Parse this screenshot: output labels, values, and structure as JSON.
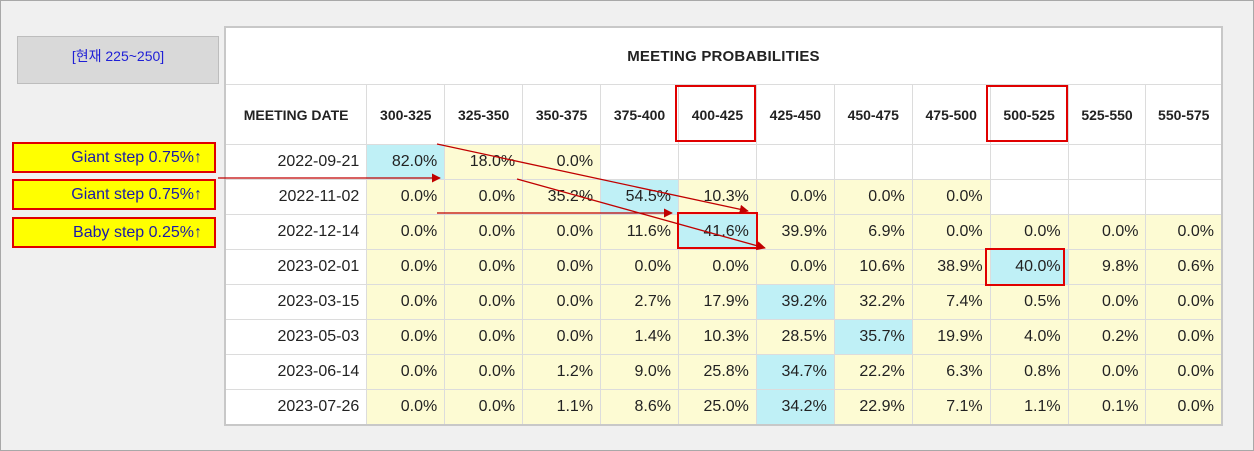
{
  "current_label": "[현재 225~250]",
  "step_labels": [
    "Giant step 0.75%↑",
    "Giant step 0.75%↑",
    "Baby step 0.25%↑"
  ],
  "table": {
    "title": "MEETING PROBABILITIES",
    "date_header": "MEETING DATE",
    "ranges": [
      "300-325",
      "325-350",
      "350-375",
      "375-400",
      "400-425",
      "425-450",
      "450-475",
      "475-500",
      "500-525",
      "525-550",
      "550-575"
    ],
    "rows": [
      {
        "date": "2022-09-21",
        "values": [
          "82.0%",
          "18.0%",
          "0.0%",
          "",
          "",
          "",
          "",
          "",
          "",
          "",
          ""
        ]
      },
      {
        "date": "2022-11-02",
        "values": [
          "0.0%",
          "0.0%",
          "35.2%",
          "54.5%",
          "10.3%",
          "0.0%",
          "0.0%",
          "0.0%",
          "",
          "",
          ""
        ]
      },
      {
        "date": "2022-12-14",
        "values": [
          "0.0%",
          "0.0%",
          "0.0%",
          "11.6%",
          "41.6%",
          "39.9%",
          "6.9%",
          "0.0%",
          "0.0%",
          "0.0%",
          "0.0%"
        ]
      },
      {
        "date": "2023-02-01",
        "values": [
          "0.0%",
          "0.0%",
          "0.0%",
          "0.0%",
          "0.0%",
          "0.0%",
          "10.6%",
          "38.9%",
          "40.0%",
          "9.8%",
          "0.6%"
        ]
      },
      {
        "date": "2023-03-15",
        "values": [
          "0.0%",
          "0.0%",
          "0.0%",
          "2.7%",
          "17.9%",
          "39.2%",
          "32.2%",
          "7.4%",
          "0.5%",
          "0.0%",
          "0.0%"
        ]
      },
      {
        "date": "2023-05-03",
        "values": [
          "0.0%",
          "0.0%",
          "0.0%",
          "1.4%",
          "10.3%",
          "28.5%",
          "35.7%",
          "19.9%",
          "4.0%",
          "0.2%",
          "0.0%"
        ]
      },
      {
        "date": "2023-06-14",
        "values": [
          "0.0%",
          "0.0%",
          "1.2%",
          "9.0%",
          "25.8%",
          "34.7%",
          "22.2%",
          "6.3%",
          "0.8%",
          "0.0%",
          "0.0%"
        ]
      },
      {
        "date": "2023-07-26",
        "values": [
          "0.0%",
          "0.0%",
          "1.1%",
          "8.6%",
          "25.0%",
          "34.2%",
          "22.9%",
          "7.1%",
          "1.1%",
          "0.1%",
          "0.0%"
        ]
      }
    ]
  },
  "colors": {
    "highlight_max": "#bff0f6",
    "highlight_other": "#fdfbd3",
    "annotation": "#e00000",
    "label_bg": "#ffff00"
  }
}
